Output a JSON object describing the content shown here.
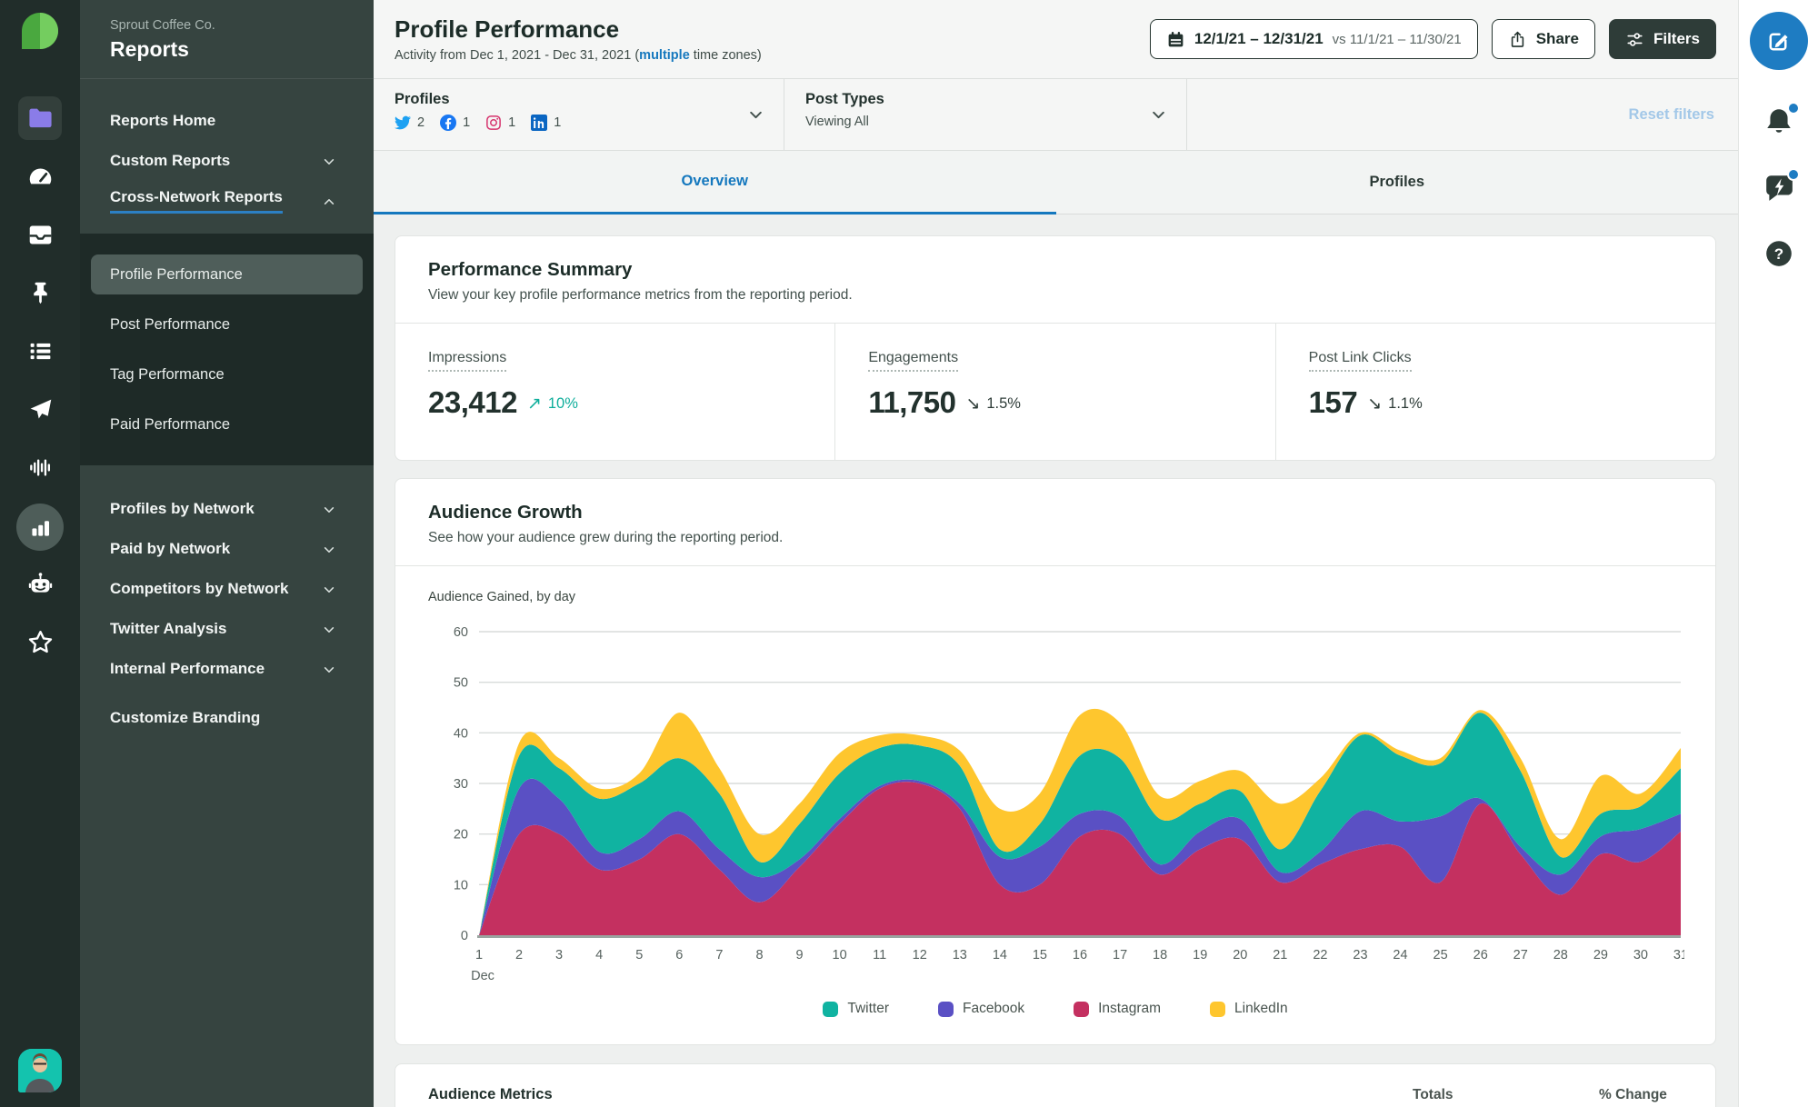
{
  "sidebar": {
    "account": "Sprout Coffee Co.",
    "title": "Reports",
    "nav_items": [
      {
        "label": "Reports Home",
        "chevron": "none",
        "active": false
      },
      {
        "label": "Custom Reports",
        "chevron": "down",
        "active": false
      },
      {
        "label": "Cross-Network Reports",
        "chevron": "up",
        "active": true
      }
    ],
    "report_items": [
      {
        "label": "Profile Performance",
        "active": true
      },
      {
        "label": "Post Performance",
        "active": false
      },
      {
        "label": "Tag Performance",
        "active": false
      },
      {
        "label": "Paid Performance",
        "active": false
      }
    ],
    "network_groups": [
      {
        "label": "Profiles by Network",
        "chevron": "down"
      },
      {
        "label": "Paid by Network",
        "chevron": "down"
      },
      {
        "label": "Competitors by Network",
        "chevron": "down"
      },
      {
        "label": "Twitter Analysis",
        "chevron": "down"
      },
      {
        "label": "Internal Performance",
        "chevron": "down"
      }
    ],
    "footer_item": "Customize Branding"
  },
  "rail": {
    "icons": [
      {
        "name": "folder",
        "variant": "tile-active"
      },
      {
        "name": "dashboard-gauge",
        "variant": ""
      },
      {
        "name": "inbox-tray",
        "variant": ""
      },
      {
        "name": "pushpin",
        "variant": ""
      },
      {
        "name": "bulleted-list",
        "variant": ""
      },
      {
        "name": "paper-plane",
        "variant": ""
      },
      {
        "name": "listening-wave",
        "variant": ""
      },
      {
        "name": "reports-bar-chart",
        "variant": "circle-active"
      },
      {
        "name": "bot",
        "variant": ""
      },
      {
        "name": "star",
        "variant": ""
      }
    ]
  },
  "right_rail": {
    "icons": [
      {
        "name": "notification-bell",
        "badge": true
      },
      {
        "name": "message-lightning",
        "badge": true
      },
      {
        "name": "help-question",
        "badge": false
      }
    ]
  },
  "header": {
    "title": "Profile Performance",
    "subtitle": {
      "prefix": "Activity from Dec 1, 2021 - Dec 31, 2021 (",
      "link": "multiple",
      "suffix": " time zones)"
    },
    "date_button": {
      "range": "12/1/21 – 12/31/21",
      "compare": "vs 11/1/21 – 11/30/21"
    },
    "share_label": "Share",
    "filters_label": "Filters"
  },
  "filter_bar": {
    "profiles_label": "Profiles",
    "networks": [
      {
        "network": "twitter",
        "count": "2"
      },
      {
        "network": "facebook",
        "count": "1"
      },
      {
        "network": "instagram",
        "count": "1"
      },
      {
        "network": "linkedin",
        "count": "1"
      }
    ],
    "post_types_label": "Post Types",
    "post_types_value": "Viewing All",
    "reset_label": "Reset filters"
  },
  "tabs": [
    {
      "label": "Overview",
      "active": true
    },
    {
      "label": "Profiles",
      "active": false
    }
  ],
  "summary": {
    "title": "Performance Summary",
    "description": "View your key profile performance metrics from the reporting period.",
    "metrics": [
      {
        "label": "Impressions",
        "value": "23,412",
        "direction": "up",
        "change": "10%"
      },
      {
        "label": "Engagements",
        "value": "11,750",
        "direction": "down",
        "change": "1.5%"
      },
      {
        "label": "Post Link Clicks",
        "value": "157",
        "direction": "down",
        "change": "1.1%"
      }
    ]
  },
  "glyphs": {
    "up": "↗",
    "down": "↘"
  },
  "audience_growth": {
    "title": "Audience Growth",
    "description": "See how your audience grew during the reporting period.",
    "chart_label": "Audience Gained, by day"
  },
  "chart_data": {
    "type": "area",
    "title": "Audience Gained, by day",
    "x_sublabel": "Dec",
    "days": [
      1,
      2,
      3,
      4,
      5,
      6,
      7,
      8,
      9,
      10,
      11,
      12,
      13,
      14,
      15,
      16,
      17,
      18,
      19,
      20,
      21,
      22,
      23,
      24,
      25,
      26,
      27,
      28,
      29,
      30,
      31
    ],
    "ylim": [
      0,
      60
    ],
    "yticks": [
      0,
      10,
      20,
      30,
      40,
      50,
      60
    ],
    "grid": "horizontal",
    "legend_position": "bottom-center",
    "stack_order": [
      "Instagram",
      "Facebook",
      "Twitter",
      "LinkedIn"
    ],
    "series": [
      {
        "name": "Twitter",
        "color": "#10b3a1",
        "values": [
          0,
          6.5,
          6,
          10.5,
          11,
          10.5,
          11,
          3,
          7,
          9,
          7.5,
          7,
          7.5,
          1.5,
          4.5,
          11.5,
          11.5,
          9,
          5.5,
          5.5,
          4.5,
          12,
          15,
          13,
          10.5,
          17,
          15,
          3.5,
          4.5,
          4.5,
          9
        ]
      },
      {
        "name": "Facebook",
        "color": "#5a50c4",
        "values": [
          0,
          9,
          7,
          3.5,
          4,
          4.5,
          4,
          5,
          1.5,
          1,
          0.5,
          0.5,
          1,
          5.5,
          7.5,
          4.5,
          3.5,
          2,
          3.5,
          4,
          2,
          2.5,
          7.5,
          5,
          13,
          1,
          1.5,
          4,
          3.5,
          6.5,
          3.5
        ]
      },
      {
        "name": "Instagram",
        "color": "#c43060",
        "values": [
          0,
          20,
          20,
          13,
          15,
          20,
          13,
          6.5,
          13.5,
          22,
          29,
          30,
          25,
          10,
          10,
          19.5,
          20,
          12,
          17,
          19,
          10.5,
          14,
          17,
          17.5,
          10.5,
          26,
          16,
          8,
          16,
          14.5,
          20.5
        ]
      },
      {
        "name": "LinkedIn",
        "color": "#fec62e",
        "values": [
          0,
          2.5,
          2,
          2,
          2,
          9,
          5,
          5.5,
          4,
          4,
          2.5,
          2,
          3,
          8,
          6,
          8,
          7,
          4.5,
          4.5,
          4,
          9,
          2.5,
          0.5,
          1,
          1,
          0.5,
          2.5,
          3.5,
          7.5,
          2.5,
          4
        ]
      }
    ]
  },
  "table_preview": {
    "title": "Audience Metrics",
    "totals_label": "Totals",
    "change_label": "% Change"
  },
  "colors": {
    "accent_blue": "#1578be",
    "positive_teal": "#0fae9b",
    "dark_slate": "#2e3c38",
    "twitter": "#10b3a1",
    "facebook": "#5a50c4",
    "instagram": "#c43060",
    "linkedin": "#fec62e"
  }
}
